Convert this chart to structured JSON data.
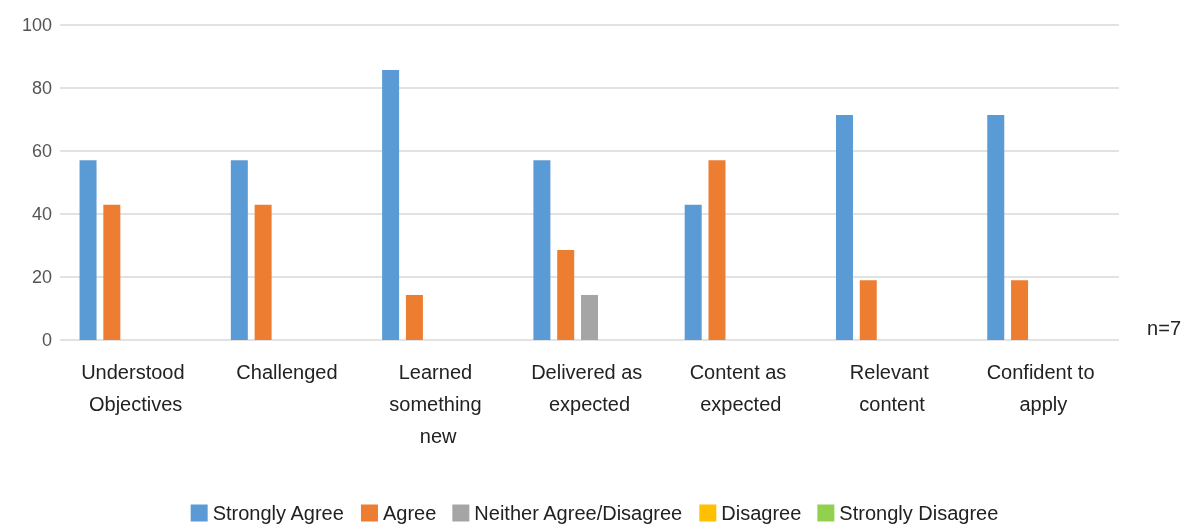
{
  "chart_data": {
    "type": "bar",
    "categories": [
      "Understood Objectives",
      "Challenged",
      "Learned something new",
      "Delivered as expected",
      "Content as expected",
      "Relevant content",
      "Confident to apply"
    ],
    "series": [
      {
        "name": "Strongly Agree",
        "color": "#5b9bd5",
        "values": [
          57.1,
          57.1,
          85.7,
          57.1,
          42.9,
          71.4,
          71.4
        ]
      },
      {
        "name": "Agree",
        "color": "#ed7d31",
        "values": [
          42.9,
          42.9,
          14.3,
          28.6,
          57.1,
          19,
          19
        ]
      },
      {
        "name": "Neither Agree/Disagree",
        "color": "#a5a5a5",
        "values": [
          0,
          0,
          0,
          14.3,
          0,
          0,
          0
        ]
      },
      {
        "name": "Disagree",
        "color": "#ffc000",
        "values": [
          0,
          0,
          0,
          0,
          0,
          0,
          0
        ]
      },
      {
        "name": "Strongly Disagree",
        "color": "#92d050",
        "values": [
          0,
          0,
          0,
          0,
          0,
          0,
          0
        ]
      }
    ],
    "ylim": [
      0,
      100
    ],
    "yticks": [
      0,
      20,
      40,
      60,
      80,
      100
    ],
    "grid": "y",
    "legend": "bottom",
    "annotations": [
      "n=7"
    ]
  }
}
